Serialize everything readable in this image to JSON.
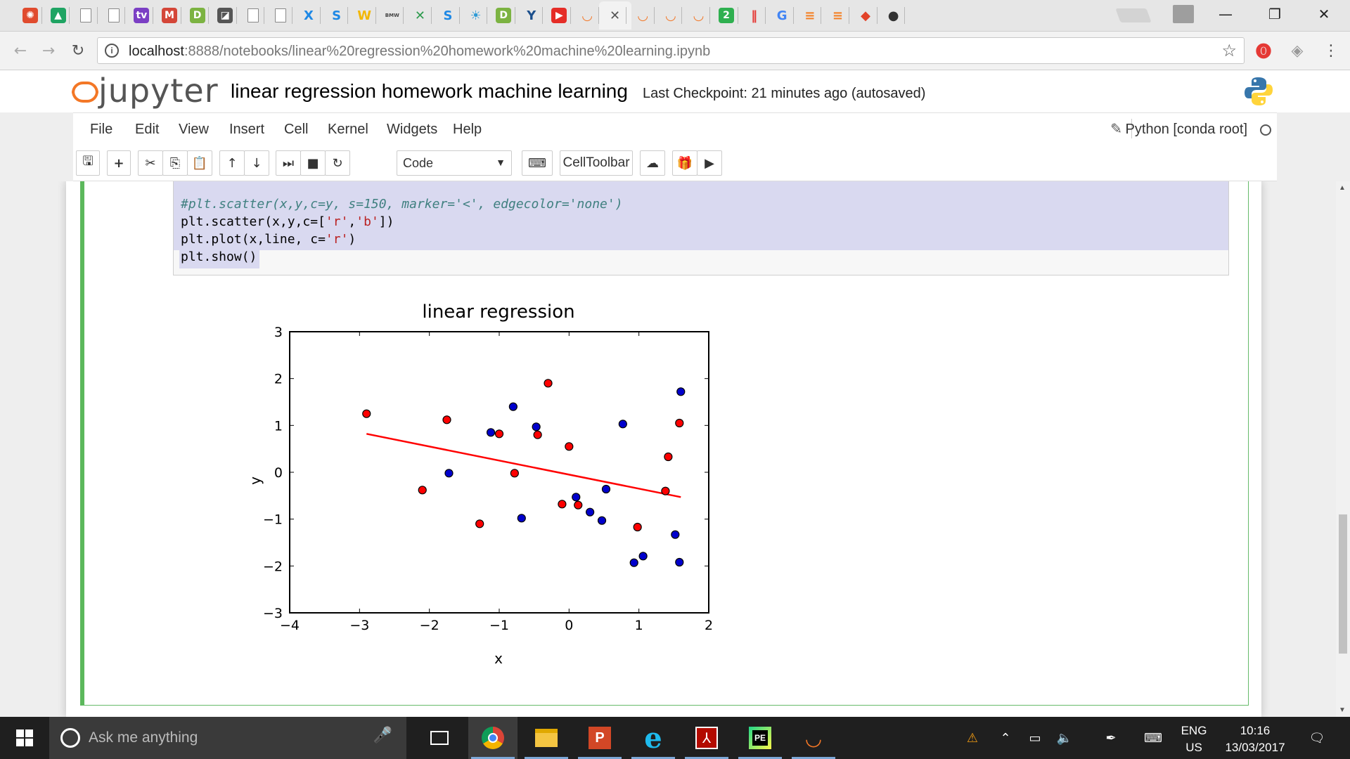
{
  "browser": {
    "tabs": [
      {
        "icon": "jupyter-logo-icon",
        "glyph": "✺",
        "color": "#e04b2e"
      },
      {
        "icon": "google-drive-icon",
        "glyph": "▲",
        "color": "#1fa463"
      },
      {
        "icon": "document-icon",
        "glyph": "",
        "color": "#ffffff"
      },
      {
        "icon": "document-icon",
        "glyph": "",
        "color": "#ffffff"
      },
      {
        "icon": "tv-icon",
        "glyph": "tv",
        "color": "#7b3fc4"
      },
      {
        "icon": "gmail-icon",
        "glyph": "M",
        "color": "#d44638"
      },
      {
        "icon": "d-app-icon",
        "glyph": "D",
        "color": "#7cb342"
      },
      {
        "icon": "edit-icon",
        "glyph": "◪",
        "color": "#555555"
      },
      {
        "icon": "document-icon",
        "glyph": "",
        "color": "#ffffff"
      },
      {
        "icon": "document-icon",
        "glyph": "",
        "color": "#ffffff"
      },
      {
        "icon": "x-icon",
        "glyph": "X",
        "color": "#1e88e5"
      },
      {
        "icon": "s-icon",
        "glyph": "S",
        "color": "#1e88e5"
      },
      {
        "icon": "w-icon",
        "glyph": "W",
        "color": "#f2b705"
      },
      {
        "icon": "bmw-group-icon",
        "glyph": "BMW",
        "color": "#444444"
      },
      {
        "icon": "x-star-icon",
        "glyph": "✕",
        "color": "#2e9b4e"
      },
      {
        "icon": "s-icon",
        "glyph": "S",
        "color": "#1e88e5"
      },
      {
        "icon": "bulb-icon",
        "glyph": "☀",
        "color": "#2c9ad6"
      },
      {
        "icon": "d-app-icon",
        "glyph": "D",
        "color": "#7cb342"
      },
      {
        "icon": "y-icon",
        "glyph": "Y",
        "color": "#1c4f8c"
      },
      {
        "icon": "youtube-icon",
        "glyph": "▶",
        "color": "#e52d27"
      },
      {
        "icon": "jupyter-icon",
        "glyph": "◡",
        "color": "#f37726"
      },
      {
        "icon": "close-tab-icon",
        "glyph": "✕",
        "color": "#555555"
      },
      {
        "icon": "jupyter-icon",
        "glyph": "◡",
        "color": "#f37726"
      },
      {
        "icon": "jupyter-icon",
        "glyph": "◡",
        "color": "#f37726"
      },
      {
        "icon": "jupyter-icon",
        "glyph": "◡",
        "color": "#f37726"
      },
      {
        "icon": "two-icon",
        "glyph": "2",
        "color": "#2fb050"
      },
      {
        "icon": "pause-icon",
        "glyph": "‖",
        "color": "#e53935"
      },
      {
        "icon": "google-icon",
        "glyph": "G",
        "color": "#4285f4"
      },
      {
        "icon": "stack-icon",
        "glyph": "≡",
        "color": "#f48024"
      },
      {
        "icon": "stack-icon",
        "glyph": "≡",
        "color": "#f48024"
      },
      {
        "icon": "gitlab-icon",
        "glyph": "◆",
        "color": "#e24329"
      },
      {
        "icon": "github-icon",
        "glyph": "●",
        "color": "#333333"
      }
    ],
    "url_host": "localhost",
    "url_rest": ":8888/notebooks/linear%20regression%20homework%20machine%20learning.ipynb"
  },
  "jupyter": {
    "logo_text": "jupyter",
    "notebook_title": "linear regression homework machine learning",
    "checkpoint": "Last Checkpoint: 21 minutes ago (autosaved)",
    "menu": [
      "File",
      "Edit",
      "View",
      "Insert",
      "Cell",
      "Kernel",
      "Widgets",
      "Help"
    ],
    "kernel": "Python [conda root]",
    "cell_type": "Code",
    "celltoolbar_label": "CellToolbar"
  },
  "code": {
    "line1_comment": "#plt.scatter(x,y,c=y, s=150, marker='<', edgecolor='none')",
    "line2_a": "plt.scatter(x,y,c=[",
    "line2_s1": "'r'",
    "line2_b": ",",
    "line2_s2": "'b'",
    "line2_c": "])",
    "line3_a": "plt.plot(x,line, c=",
    "line3_s": "'r'",
    "line3_b": ")",
    "line4": "plt.show()"
  },
  "chart_data": {
    "type": "scatter",
    "title": "linear regression",
    "xlabel": "x",
    "ylabel": "y",
    "xlim": [
      -4,
      2
    ],
    "ylim": [
      -3,
      3
    ],
    "xticks": [
      -4,
      -3,
      -2,
      -1,
      0,
      1,
      2
    ],
    "yticks": [
      -3,
      -2,
      -1,
      0,
      1,
      2,
      3
    ],
    "tick_labels_x": [
      "−4",
      "−3",
      "−2",
      "−1",
      "0",
      "1",
      "2"
    ],
    "tick_labels_y": [
      "−3",
      "−2",
      "−1",
      "0",
      "1",
      "2",
      "3"
    ],
    "grid": false,
    "series": [
      {
        "color": "#ff0000",
        "points": [
          [
            -2.9,
            1.25
          ],
          [
            -2.1,
            -0.38
          ],
          [
            -1.75,
            1.12
          ],
          [
            -1.28,
            -1.1
          ],
          [
            -1.0,
            0.82
          ],
          [
            -0.78,
            -0.02
          ],
          [
            -0.45,
            0.8
          ],
          [
            -0.3,
            1.9
          ],
          [
            -0.1,
            -0.68
          ],
          [
            0.0,
            0.55
          ],
          [
            0.13,
            -0.7
          ],
          [
            0.98,
            -1.17
          ],
          [
            1.38,
            -0.4
          ],
          [
            1.42,
            0.33
          ],
          [
            1.58,
            1.05
          ]
        ]
      },
      {
        "color": "#0000cc",
        "points": [
          [
            -1.72,
            -0.02
          ],
          [
            -1.12,
            0.85
          ],
          [
            -0.8,
            1.4
          ],
          [
            -0.68,
            -0.98
          ],
          [
            -0.47,
            0.97
          ],
          [
            0.1,
            -0.53
          ],
          [
            0.3,
            -0.85
          ],
          [
            0.47,
            -1.03
          ],
          [
            0.53,
            -0.36
          ],
          [
            0.77,
            1.03
          ],
          [
            0.93,
            -1.93
          ],
          [
            1.06,
            -1.79
          ],
          [
            1.52,
            -1.33
          ],
          [
            1.58,
            -1.92
          ],
          [
            1.6,
            1.72
          ]
        ]
      }
    ],
    "line": {
      "color": "#ff0000",
      "x": [
        -2.9,
        1.6
      ],
      "y": [
        0.82,
        -0.53
      ]
    }
  },
  "taskbar": {
    "search_placeholder": "Ask me anything",
    "lang1": "ENG",
    "lang2": "US",
    "time": "10:16",
    "date": "13/03/2017"
  }
}
